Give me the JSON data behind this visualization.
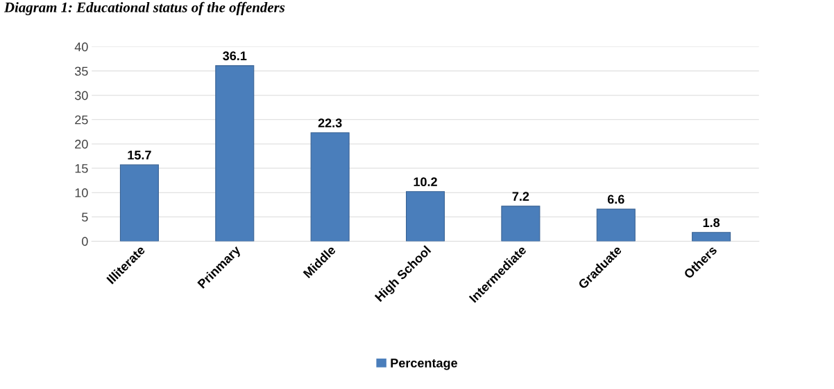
{
  "chart_data": {
    "type": "bar",
    "title": "Diagram 1: Educational status of the offenders",
    "categories": [
      "Illiterate",
      "Prinmary",
      "Middle",
      "High School",
      "Intermediate",
      "Graduate",
      "Others"
    ],
    "series": [
      {
        "name": "Percentage",
        "color": "#4a7ebb",
        "values": [
          15.7,
          36.1,
          22.3,
          10.2,
          7.2,
          6.6,
          1.8
        ]
      }
    ],
    "ylim": [
      0,
      40
    ],
    "yticks": [
      0,
      5,
      10,
      15,
      20,
      25,
      30,
      35,
      40
    ],
    "grid": "y",
    "legend": "bottom",
    "data_labels": true
  }
}
